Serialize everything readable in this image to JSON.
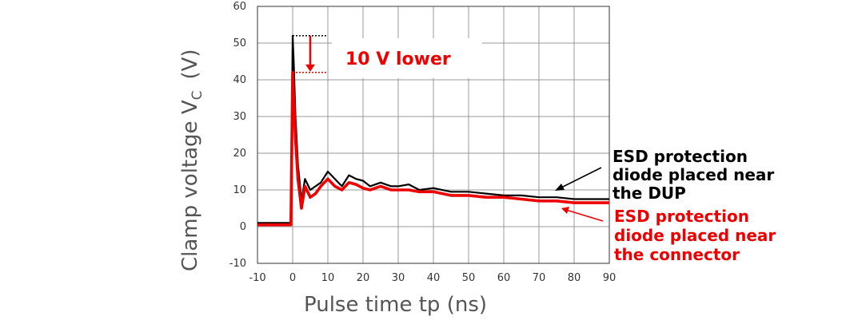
{
  "chart_data": {
    "type": "line",
    "xlabel": "Pulse time tp  (ns)",
    "ylabel_main": "Clamp voltage V",
    "ylabel_sub": "C",
    "ylabel_unit": "(V)",
    "xlim": [
      -10,
      90
    ],
    "ylim": [
      -10,
      60
    ],
    "x_ticks": [
      "-10",
      "0",
      "10",
      "20",
      "30",
      "40",
      "50",
      "60",
      "70",
      "80",
      "90"
    ],
    "y_ticks": [
      "-10",
      "0",
      "10",
      "20",
      "30",
      "40",
      "50",
      "60"
    ],
    "grid": true,
    "annotation_lower": "10 V lower",
    "peak_black": 52,
    "peak_red": 42,
    "series": [
      {
        "color": "#000000",
        "label_lines": [
          "ESD protection",
          "diode placed near",
          "the DUP"
        ],
        "x": [
          -10,
          -5,
          -0.5,
          0,
          0.3,
          0.8,
          1.5,
          2.5,
          3.5,
          5,
          6.5,
          8,
          10,
          12,
          14,
          16,
          18,
          20,
          22,
          25,
          28,
          30,
          33,
          36,
          40,
          45,
          50,
          55,
          60,
          65,
          70,
          75,
          80,
          85,
          90
        ],
        "y": [
          1,
          1,
          1,
          52,
          45,
          30,
          17,
          7,
          13,
          10,
          11,
          12,
          15,
          13,
          11,
          14,
          13,
          12.5,
          11,
          12,
          11,
          11,
          11.5,
          10,
          10.5,
          9.5,
          9.5,
          9,
          8.5,
          8.5,
          8,
          8,
          7.5,
          7.5,
          7.5
        ]
      },
      {
        "color": "#ee0000",
        "label_lines": [
          "ESD protection",
          "diode placed near",
          "the connector"
        ],
        "x": [
          -10,
          -5,
          -0.5,
          0,
          0.3,
          0.8,
          1.5,
          2.5,
          3.5,
          5,
          6.5,
          8,
          10,
          12,
          14,
          16,
          18,
          20,
          22,
          25,
          28,
          30,
          33,
          36,
          40,
          45,
          50,
          55,
          60,
          65,
          70,
          75,
          80,
          85,
          90
        ],
        "y": [
          0.5,
          0.5,
          0.5,
          42,
          35,
          24,
          13,
          5,
          11,
          8,
          9,
          11,
          13,
          11,
          10,
          12,
          11.5,
          10.5,
          10,
          11,
          10,
          10,
          10,
          9.5,
          9.5,
          8.5,
          8.5,
          8,
          8,
          7.5,
          7,
          7,
          6.5,
          6.5,
          6.5
        ]
      }
    ]
  }
}
